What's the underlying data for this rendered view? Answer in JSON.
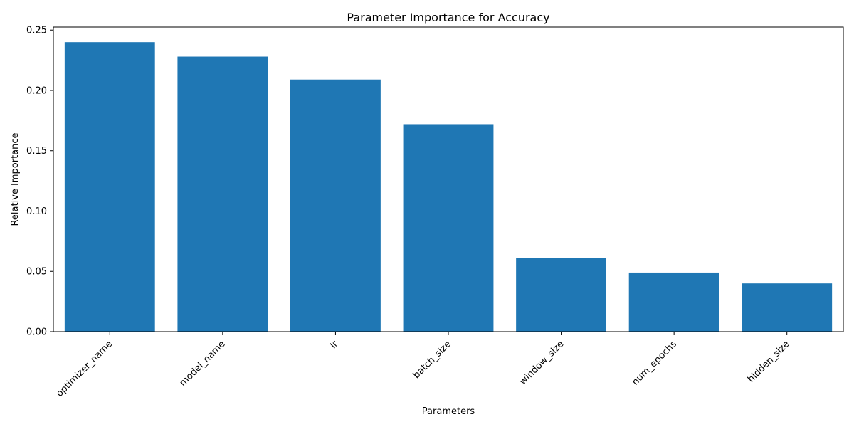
{
  "chart_data": {
    "type": "bar",
    "title": "Parameter Importance for Accuracy",
    "xlabel": "Parameters",
    "ylabel": "Relative Importance",
    "categories": [
      "optimizer_name",
      "model_name",
      "lr",
      "batch_size",
      "window_size",
      "num_epochs",
      "hidden_size"
    ],
    "values": [
      0.24,
      0.228,
      0.209,
      0.172,
      0.061,
      0.049,
      0.04
    ],
    "ylim": [
      0,
      0.25
    ],
    "yticks": [
      "0.00",
      "0.05",
      "0.10",
      "0.15",
      "0.20",
      "0.25"
    ],
    "bar_color": "#1f77b4",
    "grid": false,
    "legend": "none"
  }
}
